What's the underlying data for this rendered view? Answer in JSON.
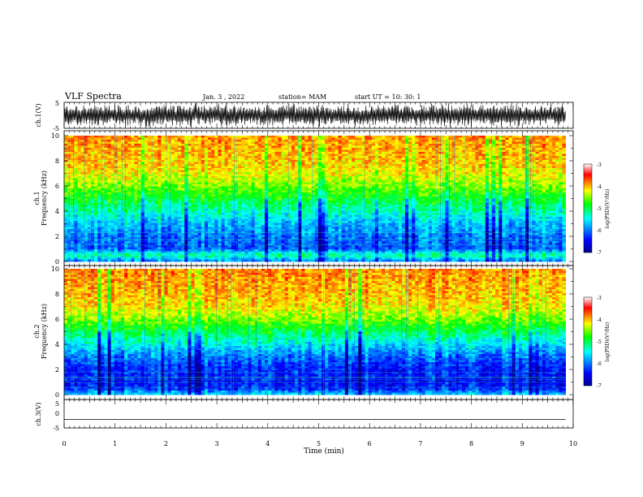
{
  "header": {
    "title": "VLF Spectra",
    "date": "Jan. 3 , 2022",
    "station": "station= MAM",
    "start": "start UT = 10: 30: 1"
  },
  "chart_data": [
    {
      "type": "line",
      "panel": "ch1-waveform",
      "ylabel": "ch.1(V)",
      "ylim": [
        -5,
        5
      ],
      "yticks": [
        "5",
        "-5"
      ],
      "xlim": [
        0,
        10
      ],
      "note_style": "dense noisy waveform, amplitude near full scale"
    },
    {
      "type": "heatmap",
      "panel": "ch1-spectrogram",
      "ylabel": "ch.1",
      "ylabel2": "Frequency (kHz)",
      "ylim": [
        0,
        10
      ],
      "yticks": [
        "0",
        "2",
        "4",
        "6",
        "8",
        "10"
      ],
      "xlim": [
        0,
        9.85
      ],
      "colorbar": {
        "label": "log(PSD)(V²/Hz)",
        "range": [
          -7,
          -3
        ],
        "ticks": [
          "-3",
          "-4",
          "-5",
          "-6",
          "-7"
        ],
        "colors": [
          "#00008f",
          "#0000ff",
          "#00ffff",
          "#00ff00",
          "#ffff00",
          "#ff0000",
          "#ffffff"
        ]
      },
      "profile_khz_to_logpsd": [
        [
          0,
          -6.0
        ],
        [
          0.5,
          -5.2
        ],
        [
          1,
          -6.1
        ],
        [
          2,
          -6.0
        ],
        [
          3,
          -5.7
        ],
        [
          4,
          -5.3
        ],
        [
          5,
          -4.9
        ],
        [
          6,
          -4.5
        ],
        [
          7,
          -4.2
        ],
        [
          8,
          -4.05
        ],
        [
          10,
          -3.9
        ]
      ]
    },
    {
      "type": "heatmap",
      "panel": "ch2-spectrogram",
      "ylabel": "ch.2",
      "ylabel2": "Frequency (kHz)",
      "ylim": [
        0,
        10
      ],
      "yticks": [
        "0",
        "2",
        "4",
        "6",
        "8",
        "10"
      ],
      "xlim": [
        0,
        9.85
      ],
      "colorbar": {
        "label": "log(PSD)(V²/Hz)",
        "range": [
          -7,
          -3
        ],
        "ticks": [
          "-3",
          "-4",
          "-5",
          "-6",
          "-7"
        ],
        "colors": [
          "#00008f",
          "#0000ff",
          "#00ffff",
          "#00ff00",
          "#ffff00",
          "#ff0000",
          "#ffffff"
        ]
      },
      "profile_khz_to_logpsd": [
        [
          0,
          -5.6
        ],
        [
          0.5,
          -6.3
        ],
        [
          1,
          -6.4
        ],
        [
          2,
          -6.3
        ],
        [
          3,
          -6.0
        ],
        [
          4,
          -5.5
        ],
        [
          5,
          -5.0
        ],
        [
          6,
          -4.5
        ],
        [
          7,
          -4.15
        ],
        [
          8,
          -4.0
        ],
        [
          10,
          -3.85
        ]
      ]
    },
    {
      "type": "line",
      "panel": "ch3-waveform",
      "ylabel": "ch.3(V)",
      "ylim": [
        -5,
        5
      ],
      "yticks": [
        "5",
        "0",
        "-5"
      ],
      "xlim": [
        0,
        10
      ],
      "xlabel": "Time (min)",
      "xticks": [
        "0",
        "1",
        "2",
        "3",
        "4",
        "5",
        "6",
        "7",
        "8",
        "9",
        "10"
      ],
      "x": [
        0,
        9.85
      ],
      "y": [
        -2,
        -2
      ]
    }
  ]
}
